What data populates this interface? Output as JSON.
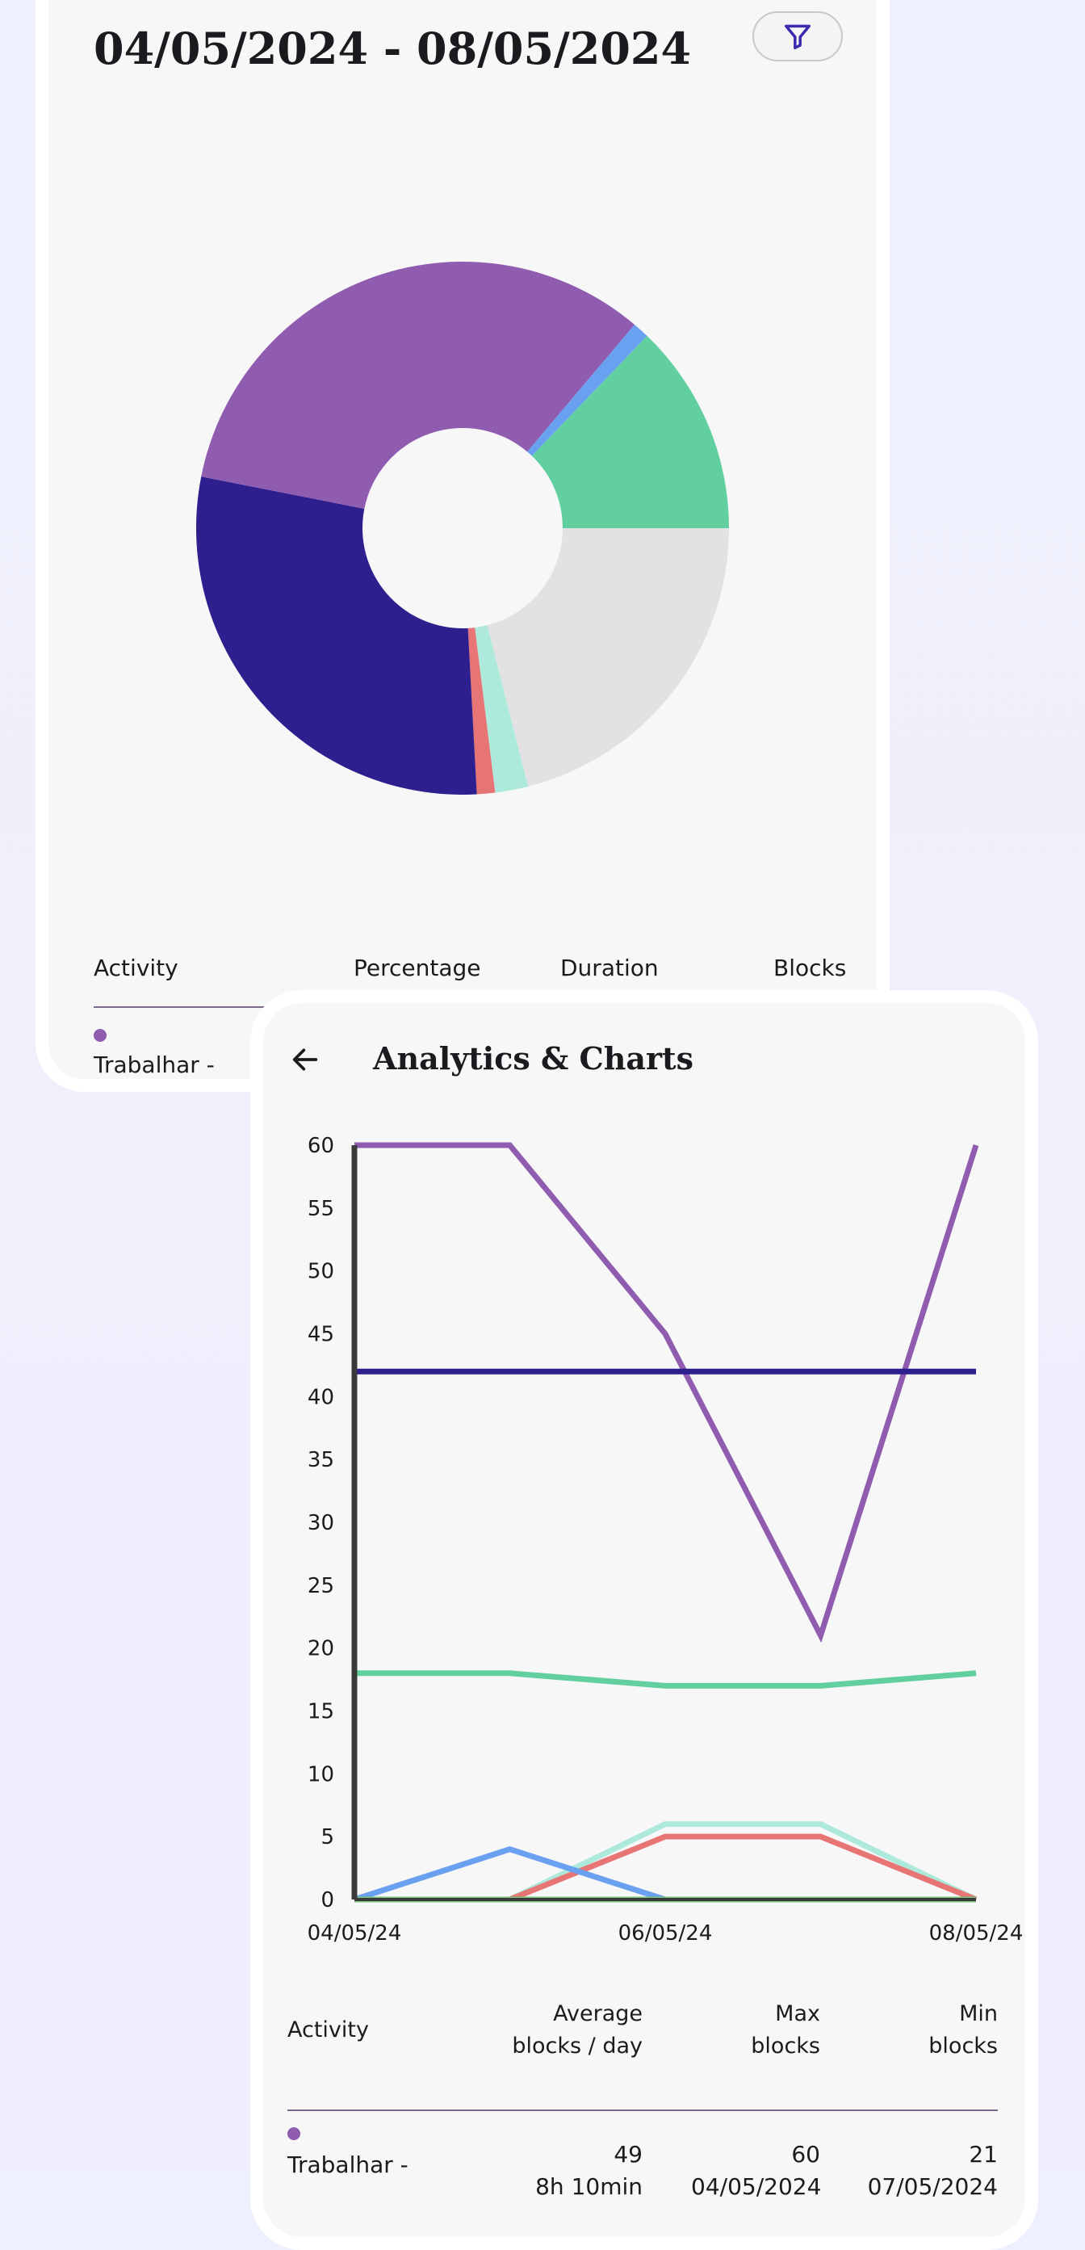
{
  "back_card": {
    "title": "04/05/2024 - 08/05/2024",
    "filter_icon": "filter-icon",
    "table": {
      "headers": [
        "Activity",
        "Percentage",
        "Duration",
        "Blocks"
      ],
      "first_row": {
        "label": "Trabalhar -",
        "color": "#905cb0"
      }
    }
  },
  "front_card": {
    "back_icon": "arrow-left-icon",
    "title": "Analytics & Charts",
    "stats_table": {
      "headers": [
        "Activity",
        "Average\nblocks / day",
        "Max\nblocks",
        "Min\nblocks"
      ],
      "first_row": {
        "label": "Trabalhar -",
        "color": "#905cb0",
        "average": "49",
        "average_sub": "8h 10min",
        "max": "60",
        "max_sub": "04/05/2024",
        "min": "21",
        "min_sub": "07/05/2024"
      }
    }
  },
  "chart_data": [
    {
      "type": "pie",
      "donut": true,
      "slices": [
        {
          "percent": 21.0,
          "color": "#e2e2e2"
        },
        {
          "percent": 2.0,
          "color": "#aeeadb"
        },
        {
          "percent": 1.1,
          "color": "#e87575"
        },
        {
          "percent": 28.9,
          "color": "#2e1f8f"
        },
        {
          "percent": 33.0,
          "color": "#905cb0"
        },
        {
          "percent": 1.0,
          "color": "#6aa0f0"
        },
        {
          "percent": 12.8,
          "color": "#62cfa1"
        }
      ],
      "start_angle_deg": 90,
      "direction": "clockwise"
    },
    {
      "type": "line",
      "x": [
        "04/05/24",
        "05/05/24",
        "06/05/24",
        "07/05/24",
        "08/05/24"
      ],
      "x_tick_labels": [
        "04/05/24",
        "06/05/24",
        "08/05/24"
      ],
      "ylim": [
        0,
        60
      ],
      "y_ticks": [
        0,
        5,
        10,
        15,
        20,
        25,
        30,
        35,
        40,
        45,
        50,
        55,
        60
      ],
      "grid": false,
      "series": [
        {
          "color": "#905cb0",
          "values": [
            60,
            60,
            45,
            21,
            60
          ]
        },
        {
          "color": "#2e1f8f",
          "values": [
            42,
            42,
            42,
            42,
            42
          ]
        },
        {
          "color": "#62cfa1",
          "values": [
            18,
            18,
            17,
            17,
            18
          ]
        },
        {
          "color": "#aeeadb",
          "values": [
            0,
            0,
            6,
            6,
            0
          ]
        },
        {
          "color": "#e87575",
          "values": [
            0,
            0,
            5,
            5,
            0
          ]
        },
        {
          "color": "#6aa0f0",
          "values": [
            0,
            4,
            0,
            0,
            0
          ]
        },
        {
          "color": "#75c47a",
          "values": [
            0,
            0,
            0,
            0,
            0
          ]
        }
      ]
    }
  ]
}
